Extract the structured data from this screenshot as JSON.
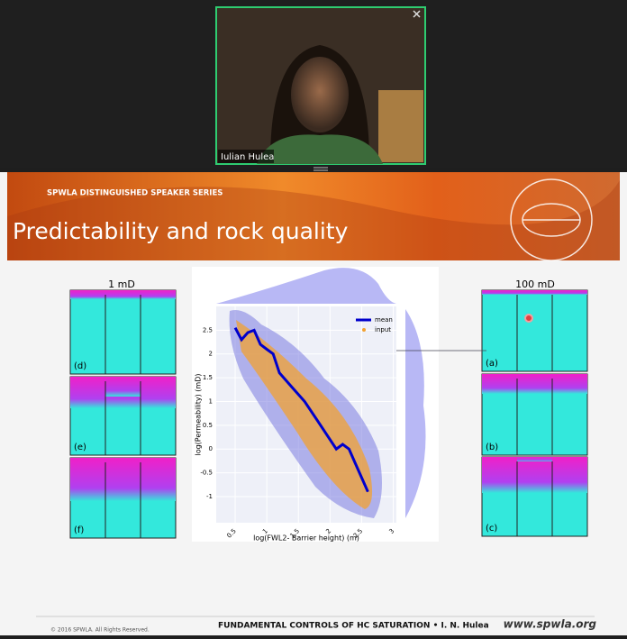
{
  "video": {
    "participant": "Iulian Hulea"
  },
  "slide": {
    "series": "SPWLA DISTINGUISHED SPEAKER SERIES",
    "title": "Predictability and rock quality",
    "left": {
      "heading": "1 mD",
      "panels": [
        "(d)",
        "(e)",
        "(f)"
      ]
    },
    "right": {
      "heading": "100 mD",
      "panels": [
        "(a)",
        "(b)",
        "(c)"
      ]
    },
    "plot": {
      "xlabel": "log(FWL2- Barrier height) (m)",
      "ylabel": "log(Permeability) (mD)",
      "legend": [
        "mean",
        "input"
      ],
      "xlim": [
        0.2,
        3.05
      ],
      "ylim": [
        -1.55,
        3.0
      ],
      "xticks": [
        0.5,
        1.0,
        1.5,
        2.0,
        2.5,
        3.0
      ],
      "yticks": [
        2.5,
        2.0,
        1.5,
        1.0,
        0.5,
        0.0,
        -0.5,
        -1.0
      ],
      "mean": {
        "x": [
          0.5,
          0.6,
          0.7,
          0.8,
          0.9,
          1.0,
          1.1,
          1.2,
          1.4,
          1.6,
          1.8,
          2.0,
          2.1,
          2.2,
          2.3,
          2.4,
          2.5,
          2.6
        ],
        "y": [
          2.55,
          2.3,
          2.45,
          2.5,
          2.2,
          2.1,
          2.0,
          1.6,
          1.3,
          1.0,
          0.6,
          0.2,
          0.0,
          0.1,
          0.0,
          -0.3,
          -0.6,
          -0.9
        ]
      }
    },
    "footer": {
      "copyright": "© 2016 SPWLA. All Rights Reserved.",
      "talk": "FUNDAMENTAL CONTROLS OF HC SATURATION • I. N. Hulea",
      "site": "www.spwla.org"
    }
  }
}
